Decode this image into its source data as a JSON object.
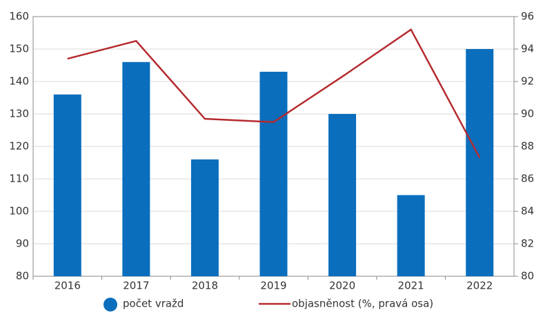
{
  "chart_data": {
    "type": "bar",
    "categories": [
      "2016",
      "2017",
      "2018",
      "2019",
      "2020",
      "2021",
      "2022"
    ],
    "series": [
      {
        "name": "počet vražd",
        "type": "bar",
        "color": "#0a6ebd",
        "values": [
          136,
          146,
          116,
          143,
          130,
          105,
          150
        ]
      },
      {
        "name": "objasněnost (%, pravá osa)",
        "type": "line",
        "axis": "y2",
        "color": "#b52a2e",
        "values": [
          93.4,
          94.5,
          89.7,
          89.5,
          92.3,
          95.2,
          87.3
        ]
      }
    ],
    "ylim": [
      80,
      160
    ],
    "yticks": [
      80,
      90,
      100,
      110,
      120,
      130,
      140,
      150,
      160
    ],
    "y2lim": [
      80,
      96
    ],
    "y2ticks": [
      80,
      82,
      84,
      86,
      88,
      90,
      92,
      94,
      96
    ],
    "grid": true,
    "legend": "bottom"
  }
}
